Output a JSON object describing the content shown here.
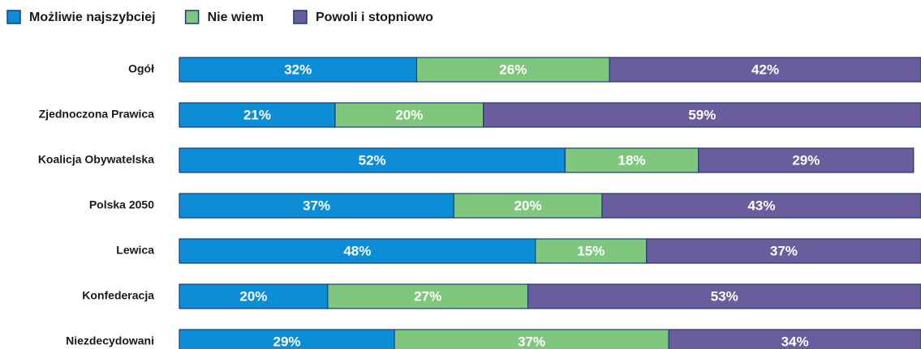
{
  "chart_data": {
    "type": "stacked-bar-horizontal",
    "categories": [
      "Ogół",
      "Zjednoczona Prawica",
      "Koalicja Obywatelska",
      "Polska 2050",
      "Lewica",
      "Konfederacja",
      "Niezdecydowani"
    ],
    "xlim": [
      0,
      100
    ],
    "series": [
      {
        "name": "Możliwie najszybciej",
        "color": "#0b8ed5",
        "values": [
          32,
          21,
          52,
          37,
          48,
          20,
          29
        ],
        "value_labels": [
          "32%",
          "21%",
          "52%",
          "37%",
          "48%",
          "20%",
          "29%"
        ]
      },
      {
        "name": "Nie wiem",
        "color": "#80c77e",
        "values": [
          26,
          20,
          18,
          20,
          15,
          27,
          37
        ],
        "value_labels": [
          "26%",
          "20%",
          "18%",
          "20%",
          "15%",
          "27%",
          "37%"
        ]
      },
      {
        "name": "Powoli i stopniowo",
        "color": "#6a5d9e",
        "values": [
          42,
          59,
          29,
          43,
          37,
          53,
          34
        ],
        "value_labels": [
          "42%",
          "59%",
          "29%",
          "43%",
          "37%",
          "53%",
          "34%"
        ]
      }
    ]
  }
}
